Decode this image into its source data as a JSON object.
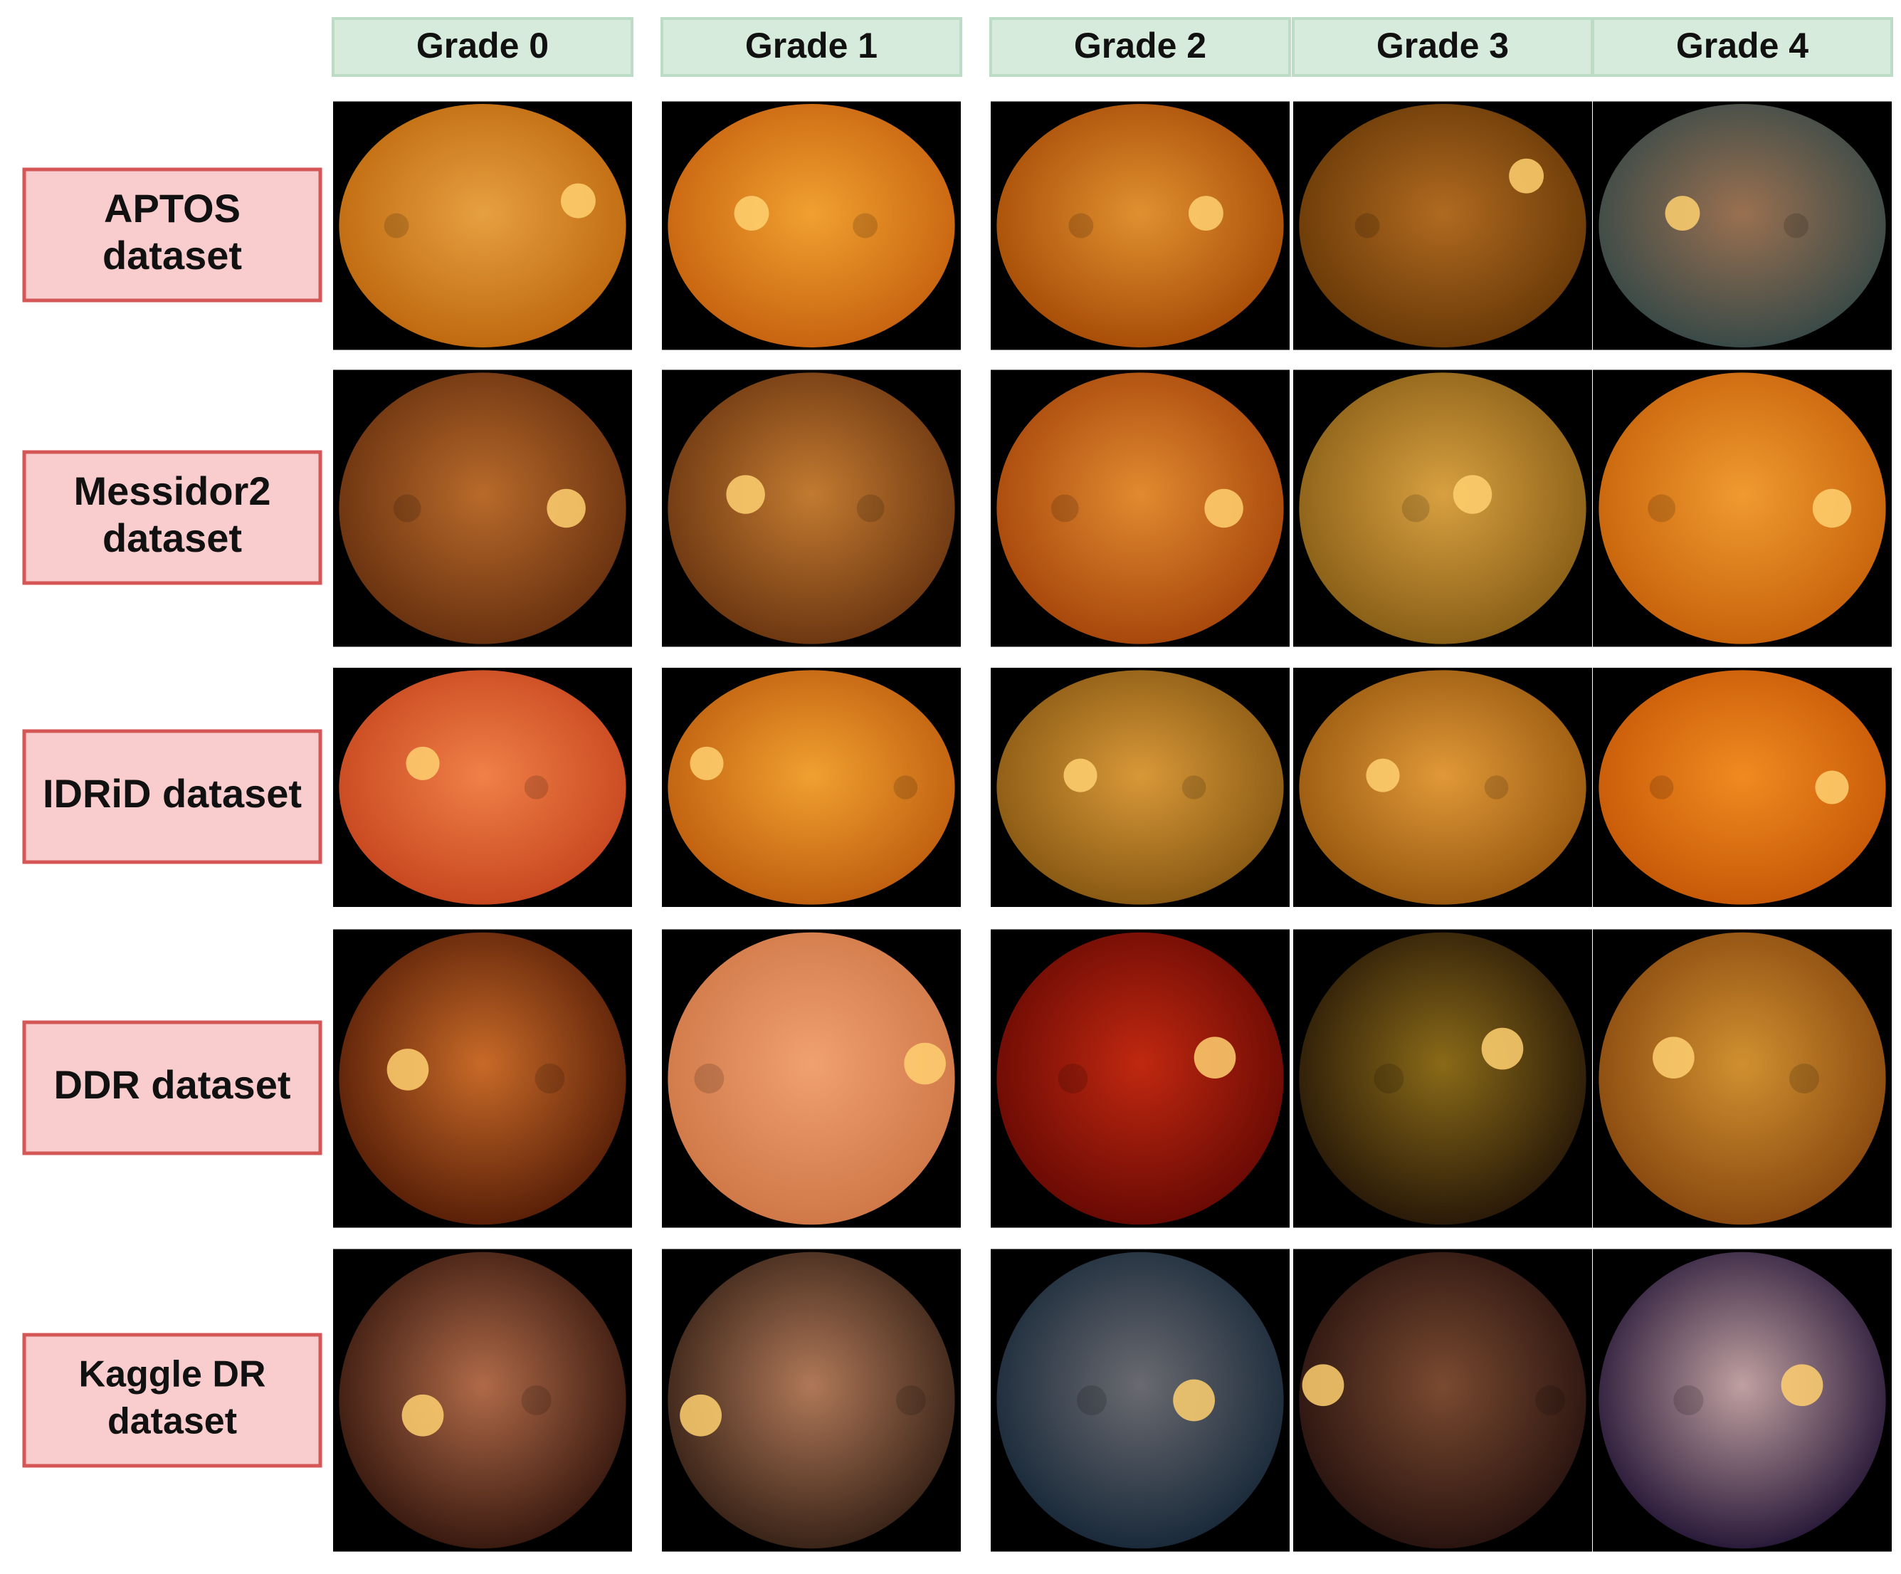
{
  "column_headers": [
    "Grade 0",
    "Grade 1",
    "Grade 2",
    "Grade 3",
    "Grade 4"
  ],
  "rows": [
    {
      "label": [
        "APTOS",
        "dataset"
      ]
    },
    {
      "label": [
        "Messidor2",
        "dataset"
      ]
    },
    {
      "label": [
        "IDRiD dataset"
      ]
    },
    {
      "label": [
        "DDR dataset"
      ]
    },
    {
      "label": [
        "Kaggle DR",
        "dataset"
      ]
    }
  ]
}
